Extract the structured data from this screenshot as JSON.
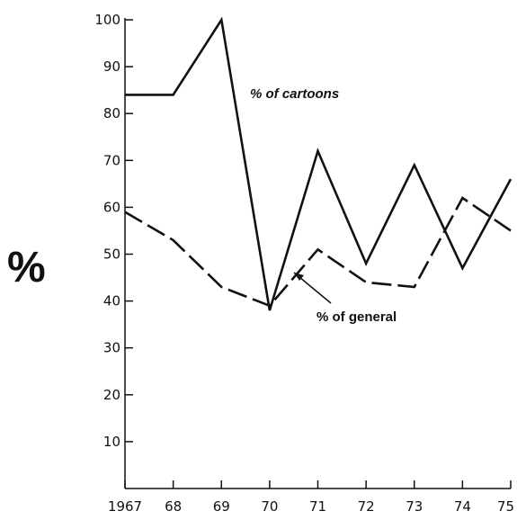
{
  "chart_data": {
    "type": "line",
    "ylabel": "%",
    "x": [
      "1967",
      "68",
      "69",
      "70",
      "71",
      "72",
      "73",
      "74",
      "75"
    ],
    "yticks": [
      10,
      20,
      30,
      40,
      50,
      60,
      70,
      80,
      90,
      100
    ],
    "ylim": [
      0,
      100
    ],
    "grid": false,
    "series": [
      {
        "name": "% of cartoons",
        "style": "solid",
        "values": [
          84,
          84,
          100,
          38,
          72,
          48,
          69,
          47,
          66
        ]
      },
      {
        "name": "% of general",
        "style": "dashed",
        "values": [
          59,
          53,
          43,
          39,
          51,
          44,
          43,
          62,
          55
        ]
      }
    ],
    "annotations": [
      {
        "text": "% of cartoons",
        "series": 0
      },
      {
        "text": "% of general",
        "series": 1
      }
    ]
  },
  "colors": {
    "line": "#111111",
    "axis": "#111111",
    "background": "#ffffff"
  }
}
